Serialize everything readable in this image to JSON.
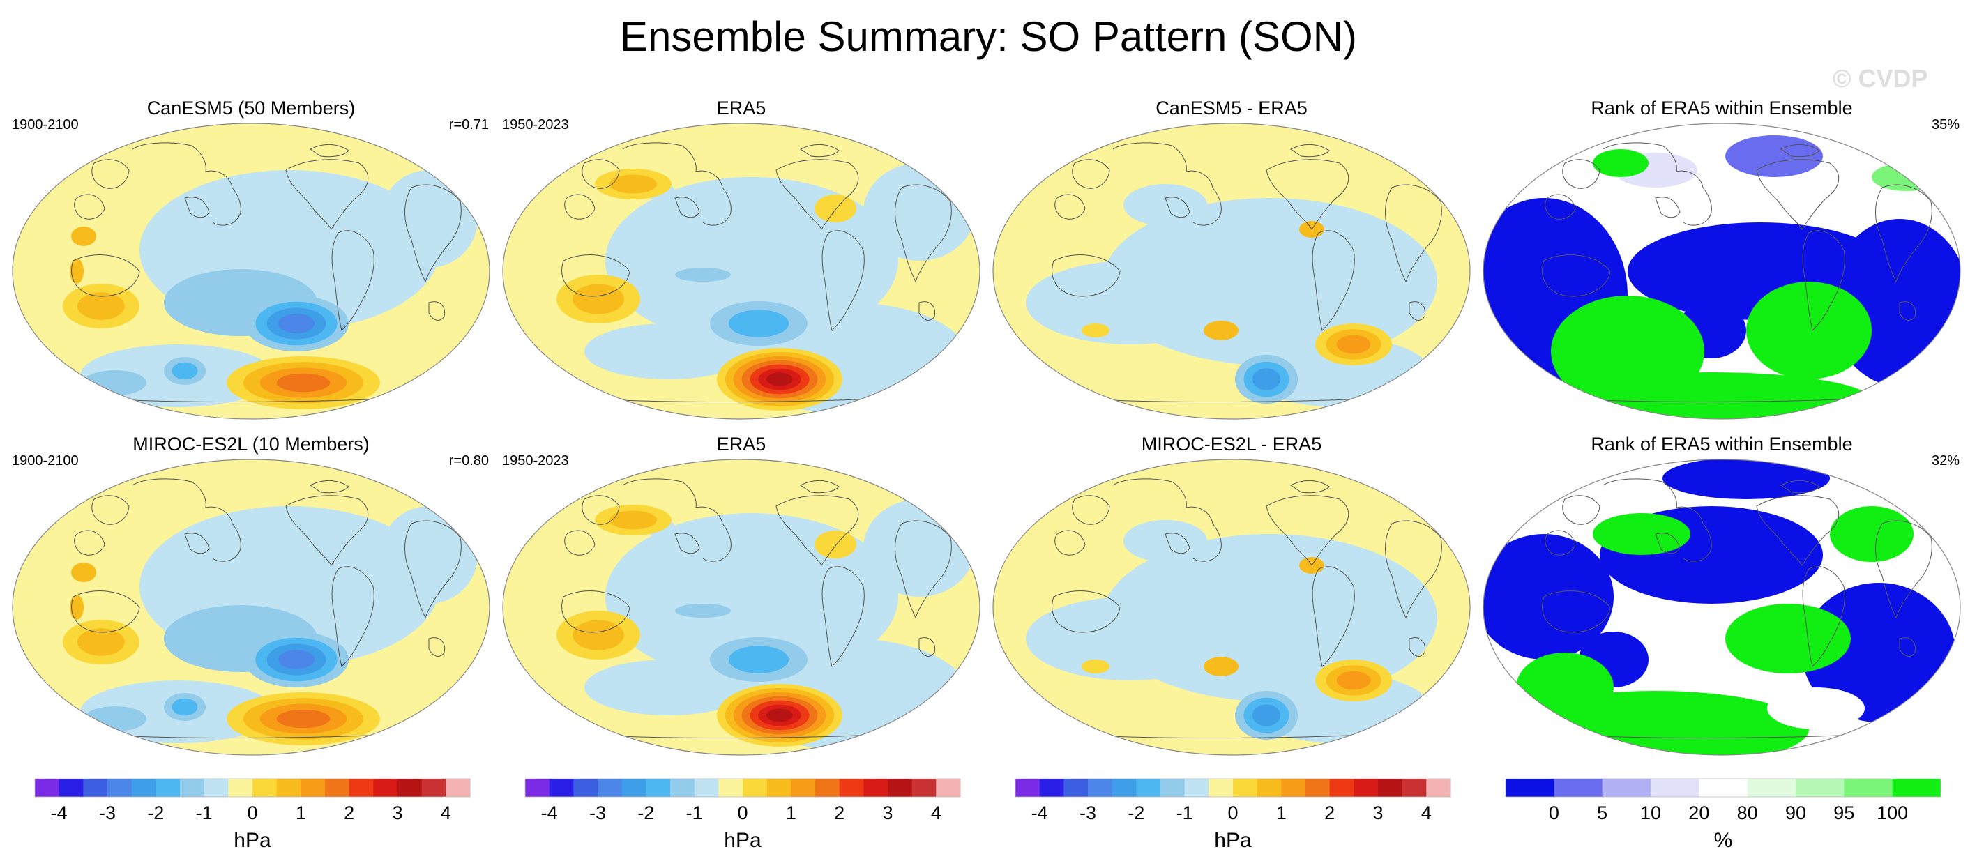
{
  "title": "Ensemble Summary: SO Pattern (SON)",
  "watermark": "© CVDP",
  "colors": {
    "pressure_scale": [
      "#7b2ae6",
      "#2a1fe6",
      "#3b5fe0",
      "#4b86e8",
      "#3f9ee8",
      "#4cb7f0",
      "#93cbeb",
      "#bfe3f2",
      "#fbf49a",
      "#fbd839",
      "#f8bb1c",
      "#f89c18",
      "#f07418",
      "#ee3a14",
      "#d91b16",
      "#b61414",
      "#c83232",
      "#f5b2b2"
    ],
    "rank_scale": [
      "#0b10e6",
      "#6a6cf0",
      "#b0b2f5",
      "#e2e3fb",
      "#ffffff",
      "#e0fbe0",
      "#b5f7b5",
      "#7af57a",
      "#11ee11"
    ],
    "land_outline": "#555555"
  },
  "panels": [
    {
      "title": "CanESM5 (50 Members)",
      "left": "1900-2100",
      "right": "r=0.71",
      "kind": "pressure",
      "variant": "model"
    },
    {
      "title": "ERA5",
      "left": "1950-2023",
      "right": "",
      "kind": "pressure",
      "variant": "obs"
    },
    {
      "title": "CanESM5 - ERA5",
      "left": "",
      "right": "",
      "kind": "pressure",
      "variant": "diff"
    },
    {
      "title": "Rank of ERA5 within Ensemble",
      "left": "",
      "right": "35%",
      "kind": "rank",
      "variant": "rank"
    },
    {
      "title": "MIROC-ES2L (10 Members)",
      "left": "1900-2100",
      "right": "r=0.80",
      "kind": "pressure",
      "variant": "model"
    },
    {
      "title": "ERA5",
      "left": "1950-2023",
      "right": "",
      "kind": "pressure",
      "variant": "obs"
    },
    {
      "title": "MIROC-ES2L - ERA5",
      "left": "",
      "right": "",
      "kind": "pressure",
      "variant": "diff"
    },
    {
      "title": "Rank of ERA5 within Ensemble",
      "left": "",
      "right": "32%",
      "kind": "rank",
      "variant": "rank"
    }
  ],
  "colorbars": [
    {
      "label": "hPa",
      "kind": "pressure",
      "ticks": [
        "-4",
        "-3",
        "-2",
        "-1",
        "0",
        "1",
        "2",
        "3",
        "4"
      ],
      "tick_values": [
        -4,
        -3,
        -2,
        -1,
        0,
        1,
        2,
        3,
        4
      ],
      "range": [
        -4.5,
        4.5
      ]
    },
    {
      "label": "hPa",
      "kind": "pressure",
      "ticks": [
        "-4",
        "-3",
        "-2",
        "-1",
        "0",
        "1",
        "2",
        "3",
        "4"
      ],
      "tick_values": [
        -4,
        -3,
        -2,
        -1,
        0,
        1,
        2,
        3,
        4
      ],
      "range": [
        -4.5,
        4.5
      ]
    },
    {
      "label": "hPa",
      "kind": "pressure",
      "ticks": [
        "-4",
        "-3",
        "-2",
        "-1",
        "0",
        "1",
        "2",
        "3",
        "4"
      ],
      "tick_values": [
        -4,
        -3,
        -2,
        -1,
        0,
        1,
        2,
        3,
        4
      ],
      "range": [
        -4.5,
        4.5
      ]
    },
    {
      "label": "%",
      "kind": "rank",
      "ticks": [
        "0",
        "5",
        "10",
        "20",
        "80",
        "90",
        "95",
        "100"
      ],
      "tick_index": [
        1,
        2,
        3,
        4,
        5,
        6,
        7,
        8
      ]
    }
  ],
  "chart_data": [
    {
      "type": "heatmap",
      "title": "CanESM5 (50 Members)",
      "period": "1900-2100",
      "pattern_correlation": 0.71,
      "units": "hPa",
      "color_range": [
        -4.5,
        4.5
      ]
    },
    {
      "type": "heatmap",
      "title": "ERA5",
      "period": "1950-2023",
      "units": "hPa",
      "color_range": [
        -4.5,
        4.5
      ]
    },
    {
      "type": "heatmap",
      "title": "CanESM5 - ERA5",
      "units": "hPa",
      "color_range": [
        -4.5,
        4.5
      ]
    },
    {
      "type": "heatmap",
      "title": "Rank of ERA5 within Ensemble",
      "summary": "35%",
      "units": "%",
      "levels": [
        0,
        5,
        10,
        20,
        80,
        90,
        95,
        100
      ]
    },
    {
      "type": "heatmap",
      "title": "MIROC-ES2L (10 Members)",
      "period": "1900-2100",
      "pattern_correlation": 0.8,
      "units": "hPa",
      "color_range": [
        -4.5,
        4.5
      ]
    },
    {
      "type": "heatmap",
      "title": "ERA5",
      "period": "1950-2023",
      "units": "hPa",
      "color_range": [
        -4.5,
        4.5
      ]
    },
    {
      "type": "heatmap",
      "title": "MIROC-ES2L - ERA5",
      "units": "hPa",
      "color_range": [
        -4.5,
        4.5
      ]
    },
    {
      "type": "heatmap",
      "title": "Rank of ERA5 within Ensemble",
      "summary": "32%",
      "units": "%",
      "levels": [
        0,
        5,
        10,
        20,
        80,
        90,
        95,
        100
      ]
    }
  ]
}
